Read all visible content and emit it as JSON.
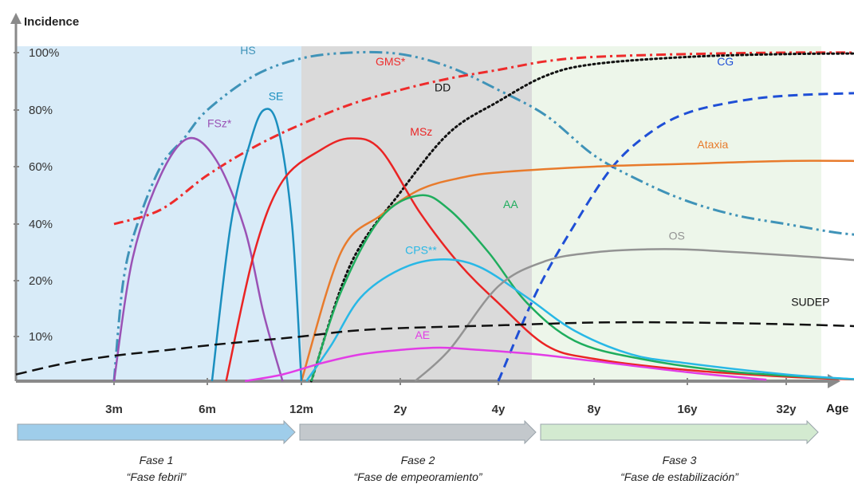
{
  "chart_data": {
    "type": "line",
    "ylabel": "Incidence",
    "xlabel": "Age",
    "x_ticks": [
      "3m",
      "6m",
      "12m",
      "2y",
      "4y",
      "8y",
      "16y",
      "32y"
    ],
    "y_ticks": [
      "10%",
      "20%",
      "40%",
      "60%",
      "80%",
      "100%"
    ],
    "phases": [
      {
        "title": "Fase 1",
        "subtitle": "“Fase febril”",
        "color": "#d8ebf8",
        "arrow_color": "#9fcdea",
        "from": 0,
        "to": 3
      },
      {
        "title": "Fase 2",
        "subtitle": "“Fase de empeoramiento”",
        "color": "#dadada",
        "arrow_color": "#c3c8cc",
        "from": 3,
        "to": 5.35
      },
      {
        "title": "Fase 3",
        "subtitle": "“Fase de estabilización”",
        "color": "#edf6ea",
        "arrow_color": "#d3ead0",
        "from": 5.35,
        "to": 8.8
      }
    ],
    "series": [
      {
        "name": "HS",
        "color": "#3f93b8",
        "dash": "16,5,3,5,3,5",
        "width": 3,
        "points": [
          [
            1,
            0
          ],
          [
            1.1,
            20
          ],
          [
            1.25,
            40
          ],
          [
            1.5,
            60
          ],
          [
            1.75,
            70
          ],
          [
            2,
            80
          ],
          [
            2.5,
            92
          ],
          [
            3,
            98
          ],
          [
            3.5,
            100
          ],
          [
            4,
            99.5
          ],
          [
            4.5,
            95
          ],
          [
            5,
            87
          ],
          [
            5.5,
            78
          ],
          [
            6,
            64
          ],
          [
            6.5,
            55
          ],
          [
            7,
            48
          ],
          [
            7.5,
            43
          ],
          [
            8,
            40
          ],
          [
            8.5,
            37
          ],
          [
            8.8,
            36
          ]
        ]
      },
      {
        "name": "GMS*",
        "color": "#ee2b2b",
        "dash": "12,5,3,5",
        "width": 3,
        "points": [
          [
            1,
            40
          ],
          [
            1.5,
            45
          ],
          [
            2,
            57
          ],
          [
            2.5,
            67
          ],
          [
            3,
            75
          ],
          [
            3.5,
            82
          ],
          [
            4,
            87
          ],
          [
            4.5,
            91
          ],
          [
            5,
            94
          ],
          [
            5.5,
            97
          ],
          [
            6,
            98.5
          ],
          [
            7,
            99.5
          ],
          [
            8,
            100
          ],
          [
            8.8,
            100
          ]
        ]
      },
      {
        "name": "DD",
        "color": "#111111",
        "dash": "2,4",
        "width": 3,
        "points": [
          [
            3.1,
            0
          ],
          [
            3.5,
            26
          ],
          [
            4,
            51
          ],
          [
            4.5,
            72
          ],
          [
            5,
            83
          ],
          [
            5.5,
            92
          ],
          [
            6,
            96
          ],
          [
            7,
            98.5
          ],
          [
            8,
            99.5
          ],
          [
            8.8,
            99.7
          ]
        ]
      },
      {
        "name": "CG",
        "color": "#1f4fd6",
        "dash": "12,7",
        "width": 3,
        "points": [
          [
            5,
            0
          ],
          [
            5.4,
            18
          ],
          [
            5.8,
            40
          ],
          [
            6.2,
            60
          ],
          [
            6.6,
            72
          ],
          [
            7,
            79
          ],
          [
            7.5,
            83
          ],
          [
            8,
            85
          ],
          [
            8.8,
            86
          ]
        ]
      },
      {
        "name": "Ataxia",
        "color": "#e87b2c",
        "dash": "",
        "width": 2.5,
        "points": [
          [
            3,
            0
          ],
          [
            3.4,
            30
          ],
          [
            3.8,
            43
          ],
          [
            4.2,
            52
          ],
          [
            4.6,
            56
          ],
          [
            5,
            58
          ],
          [
            6,
            60
          ],
          [
            7,
            61
          ],
          [
            8,
            62
          ],
          [
            8.8,
            62
          ]
        ]
      },
      {
        "name": "FSz*",
        "color": "#9a52b5",
        "dash": "",
        "width": 2.5,
        "points": [
          [
            1,
            0
          ],
          [
            1.2,
            28
          ],
          [
            1.5,
            57
          ],
          [
            1.8,
            70
          ],
          [
            2.1,
            62
          ],
          [
            2.4,
            38
          ],
          [
            2.6,
            14
          ],
          [
            2.8,
            0
          ]
        ]
      },
      {
        "name": "SE",
        "color": "#1b8fbf",
        "dash": "",
        "width": 2.5,
        "points": [
          [
            2.05,
            0
          ],
          [
            2.25,
            40
          ],
          [
            2.45,
            68
          ],
          [
            2.6,
            80
          ],
          [
            2.75,
            74
          ],
          [
            2.9,
            40
          ],
          [
            3,
            0
          ]
        ]
      },
      {
        "name": "MSz",
        "color": "#ea2424",
        "dash": "",
        "width": 2.5,
        "points": [
          [
            2.2,
            0
          ],
          [
            2.5,
            30
          ],
          [
            2.8,
            55
          ],
          [
            3.2,
            66
          ],
          [
            3.5,
            70
          ],
          [
            3.8,
            66
          ],
          [
            4.2,
            44
          ],
          [
            4.6,
            26
          ],
          [
            5,
            16
          ],
          [
            5.5,
            8
          ],
          [
            6,
            5
          ],
          [
            7,
            2.5
          ],
          [
            8,
            1
          ],
          [
            8.8,
            0.3
          ]
        ]
      },
      {
        "name": "AA",
        "color": "#1fad5d",
        "dash": "",
        "width": 2.5,
        "points": [
          [
            3.1,
            0
          ],
          [
            3.4,
            18
          ],
          [
            3.8,
            42
          ],
          [
            4.2,
            50
          ],
          [
            4.5,
            45
          ],
          [
            4.9,
            30
          ],
          [
            5.3,
            16
          ],
          [
            5.8,
            9
          ],
          [
            6.5,
            5
          ],
          [
            7.5,
            2
          ],
          [
            8.8,
            0.3
          ]
        ]
      },
      {
        "name": "CPS**",
        "color": "#28b8e6",
        "dash": "",
        "width": 2.5,
        "points": [
          [
            3.05,
            0
          ],
          [
            3.3,
            8
          ],
          [
            3.6,
            17
          ],
          [
            4,
            24
          ],
          [
            4.4,
            27.5
          ],
          [
            4.8,
            25
          ],
          [
            5.3,
            17
          ],
          [
            5.8,
            11
          ],
          [
            6.4,
            6
          ],
          [
            7,
            4
          ],
          [
            8,
            1.5
          ],
          [
            8.8,
            0.3
          ]
        ]
      },
      {
        "name": "OS",
        "color": "#939393",
        "dash": "",
        "width": 2.5,
        "points": [
          [
            4.15,
            0
          ],
          [
            4.5,
            7
          ],
          [
            5,
            19
          ],
          [
            5.5,
            27
          ],
          [
            6,
            30
          ],
          [
            6.5,
            31
          ],
          [
            7,
            31
          ],
          [
            8,
            29
          ],
          [
            8.8,
            27
          ]
        ]
      },
      {
        "name": "SUDEP",
        "color": "#111111",
        "dash": "14,7",
        "width": 2.5,
        "points": [
          [
            0,
            1.5
          ],
          [
            0.5,
            4
          ],
          [
            1,
            5.7
          ],
          [
            1.5,
            6.8
          ],
          [
            2,
            8
          ],
          [
            2.5,
            9
          ],
          [
            3,
            10
          ],
          [
            3.5,
            11
          ],
          [
            4,
            11.5
          ],
          [
            5,
            12
          ],
          [
            6,
            12.5
          ],
          [
            7,
            12.5
          ],
          [
            8,
            12.2
          ],
          [
            8.8,
            11.8
          ]
        ]
      },
      {
        "name": "AE",
        "color": "#e23de6",
        "dash": "",
        "width": 2.5,
        "points": [
          [
            2.4,
            0
          ],
          [
            2.8,
            1.5
          ],
          [
            3.2,
            4
          ],
          [
            3.6,
            6
          ],
          [
            4,
            7
          ],
          [
            4.4,
            7.5
          ],
          [
            4.8,
            7
          ],
          [
            5.4,
            6
          ],
          [
            6,
            4.5
          ],
          [
            7,
            2
          ],
          [
            7.8,
            0.3
          ]
        ]
      }
    ],
    "labels": [
      {
        "series": "HS",
        "x": 2.35,
        "y": 99.5
      },
      {
        "series": "GMS*",
        "x": 3.75,
        "y": 95.5
      },
      {
        "series": "DD",
        "x": 4.35,
        "y": 86.5
      },
      {
        "series": "CG",
        "x": 7.3,
        "y": 95.5
      },
      {
        "series": "Ataxia",
        "x": 7.1,
        "y": 66.5
      },
      {
        "series": "FSz*",
        "x": 2.0,
        "y": 74
      },
      {
        "series": "SE",
        "x": 2.65,
        "y": 83.5
      },
      {
        "series": "MSz",
        "x": 4.1,
        "y": 71
      },
      {
        "series": "AA",
        "x": 5.05,
        "y": 45.5
      },
      {
        "series": "CPS**",
        "x": 4.05,
        "y": 29.5
      },
      {
        "series": "OS",
        "x": 6.8,
        "y": 34.5
      },
      {
        "series": "SUDEP",
        "x": 8.05,
        "y": 15.5
      },
      {
        "series": "AE",
        "x": 4.15,
        "y": 9.5
      }
    ]
  }
}
